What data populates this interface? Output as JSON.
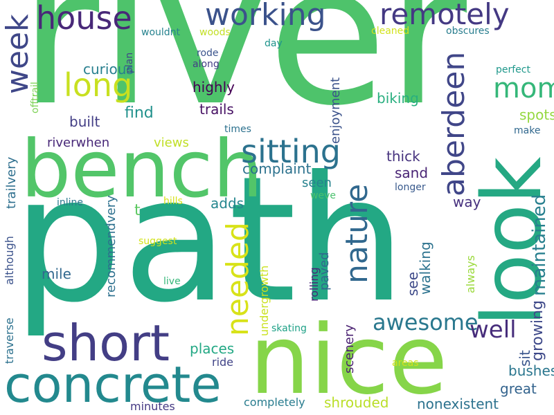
{
  "word_cloud": {
    "words": [
      {
        "text": "river",
        "color": "#4ec36b"
      },
      {
        "text": "path",
        "color": "#23a884"
      },
      {
        "text": "bench",
        "color": "#52c569"
      },
      {
        "text": "look",
        "color": "#25a883"
      },
      {
        "text": "nice",
        "color": "#86d549"
      },
      {
        "text": "concrete",
        "color": "#23898e"
      },
      {
        "text": "short",
        "color": "#433e85"
      },
      {
        "text": "house",
        "color": "#482878"
      },
      {
        "text": "working",
        "color": "#3b528b"
      },
      {
        "text": "remotely",
        "color": "#443983"
      },
      {
        "text": "sitting",
        "color": "#2c728e"
      },
      {
        "text": "long",
        "color": "#c8e020"
      },
      {
        "text": "week",
        "color": "#3f4788"
      },
      {
        "text": "aberdeen",
        "color": "#404688"
      },
      {
        "text": "mom",
        "color": "#35b779"
      },
      {
        "text": "nature",
        "color": "#31688e"
      },
      {
        "text": "needed",
        "color": "#d8e219"
      },
      {
        "text": "awesome",
        "color": "#2a788e"
      },
      {
        "text": "maintained",
        "color": "#277f8e"
      },
      {
        "text": "well",
        "color": "#472d7b"
      },
      {
        "text": "growing",
        "color": "#3e4989"
      },
      {
        "text": "curious",
        "color": "#277f8e"
      },
      {
        "text": "highly",
        "color": "#440154"
      },
      {
        "text": "trails",
        "color": "#471164"
      },
      {
        "text": "built",
        "color": "#433e85"
      },
      {
        "text": "find",
        "color": "#21918c"
      },
      {
        "text": "biking",
        "color": "#29af7f"
      },
      {
        "text": "spots",
        "color": "#95d840"
      },
      {
        "text": "enjoyment",
        "color": "#3b528b"
      },
      {
        "text": "complaint",
        "color": "#2c728e"
      },
      {
        "text": "thick",
        "color": "#46327e"
      },
      {
        "text": "sand",
        "color": "#482374"
      },
      {
        "text": "riverwhen",
        "color": "#482878"
      },
      {
        "text": "views",
        "color": "#c0df25"
      },
      {
        "text": "trailvery",
        "color": "#2e6f8e"
      },
      {
        "text": "offtrail",
        "color": "#7ad151"
      },
      {
        "text": "seen",
        "color": "#26828e"
      },
      {
        "text": "adds",
        "color": "#24868e"
      },
      {
        "text": "way",
        "color": "#46307e"
      },
      {
        "text": "mile",
        "color": "#31688e"
      },
      {
        "text": "recommendvery",
        "color": "#2d708e"
      },
      {
        "text": "t",
        "color": "#5ec962"
      },
      {
        "text": "paved",
        "color": "#31688e"
      },
      {
        "text": "walking",
        "color": "#2c728e"
      },
      {
        "text": "see",
        "color": "#3e4a89"
      },
      {
        "text": "scenery",
        "color": "#481f70"
      },
      {
        "text": "undergrowth",
        "color": "#cae11f"
      },
      {
        "text": "always",
        "color": "#9bd93c"
      },
      {
        "text": "places",
        "color": "#23a884"
      },
      {
        "text": "ride",
        "color": "#414487"
      },
      {
        "text": "bushes",
        "color": "#2a768e"
      },
      {
        "text": "great",
        "color": "#33638d"
      },
      {
        "text": "sit",
        "color": "#39558c"
      },
      {
        "text": "shrouded",
        "color": "#bade28"
      },
      {
        "text": "nonexistent",
        "color": "#2c728e"
      },
      {
        "text": "completely",
        "color": "#287c8e"
      },
      {
        "text": "minutes",
        "color": "#443983"
      },
      {
        "text": "traverse",
        "color": "#2c718e"
      },
      {
        "text": "although",
        "color": "#3b528b"
      },
      {
        "text": "rolling",
        "color": "#482677"
      },
      {
        "text": "skating",
        "color": "#1fa187"
      },
      {
        "text": "areas",
        "color": "#d0e11c"
      },
      {
        "text": "live",
        "color": "#35b779"
      },
      {
        "text": "suggest",
        "color": "#d2e21b"
      },
      {
        "text": "hills",
        "color": "#d8e219"
      },
      {
        "text": "inline",
        "color": "#2a788e"
      },
      {
        "text": "weve",
        "color": "#4ac16d"
      },
      {
        "text": "longer",
        "color": "#38598c"
      },
      {
        "text": "make",
        "color": "#31688e"
      },
      {
        "text": "perfect",
        "color": "#1f988b"
      },
      {
        "text": "times",
        "color": "#2c718e"
      },
      {
        "text": "rode",
        "color": "#3a548c"
      },
      {
        "text": "along",
        "color": "#433e85"
      },
      {
        "text": "wouldnt",
        "color": "#26828e"
      },
      {
        "text": "woods",
        "color": "#c2df23"
      },
      {
        "text": "plan",
        "color": "#3f4788"
      },
      {
        "text": "day",
        "color": "#1f948c"
      },
      {
        "text": "cleaned",
        "color": "#d2e21b"
      },
      {
        "text": "obscures",
        "color": "#287d8e"
      }
    ]
  }
}
